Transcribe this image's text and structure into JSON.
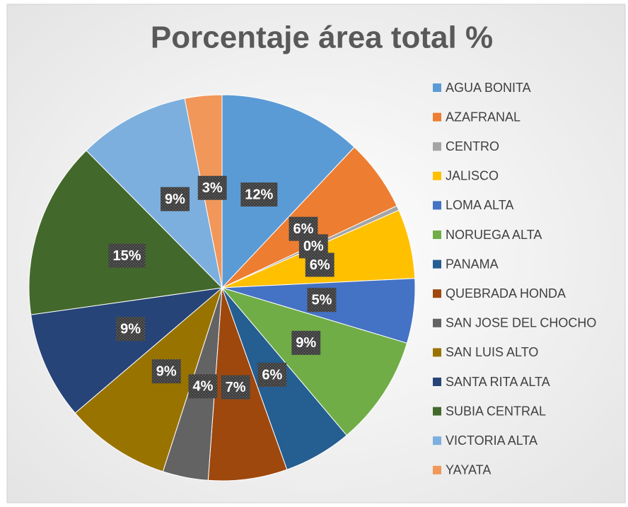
{
  "chart_data": {
    "type": "pie",
    "title": "Porcentaje  área total %",
    "categories": [
      "AGUA BONITA",
      "AZAFRANAL",
      "CENTRO",
      "JALISCO",
      "LOMA ALTA",
      "NORUEGA ALTA",
      "PANAMA",
      "QUEBRADA HONDA",
      "SAN JOSE DEL CHOCHO",
      "SAN LUIS ALTO",
      "SANTA RITA ALTA",
      "SUBIA CENTRAL",
      "VICTORIA ALTA",
      "YAYATA"
    ],
    "values": [
      12.0,
      6.0,
      0.4,
      5.8,
      5.4,
      9.2,
      5.7,
      6.6,
      3.8,
      8.8,
      9.0,
      14.8,
      9.3,
      3.1
    ],
    "value_labels": [
      "12%",
      "6%",
      "0%",
      "6%",
      "5%",
      "9%",
      "6%",
      "7%",
      "4%",
      "9%",
      "9%",
      "15%",
      "9%",
      "3%"
    ],
    "colors": [
      "#5B9BD5",
      "#ED7D31",
      "#A5A5A5",
      "#FFC000",
      "#4472C4",
      "#70AD47",
      "#255E91",
      "#9E480E",
      "#636363",
      "#997300",
      "#264478",
      "#43682B",
      "#7CAFDD",
      "#F1975A"
    ],
    "legend": "right"
  }
}
